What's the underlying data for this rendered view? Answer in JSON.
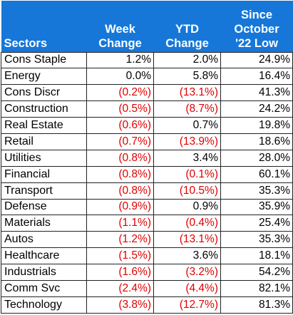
{
  "header": {
    "sectors": "Sectors",
    "week_line1": "Week",
    "week_line2": "Change",
    "ytd_line1": "YTD",
    "ytd_line2": "Change",
    "since_line1": "Since",
    "since_line2": "October",
    "since_line3": "'22 Low"
  },
  "colors": {
    "header_bg": "#1677d8",
    "header_text": "#ffffff",
    "negative": "#e00000",
    "positive": "#000000"
  },
  "rows": [
    {
      "sector": "Cons Staple",
      "week": "1.2%",
      "ytd": "2.0%",
      "since": "24.9%"
    },
    {
      "sector": "Energy",
      "week": "0.0%",
      "ytd": "5.8%",
      "since": "16.4%"
    },
    {
      "sector": "Cons Discr",
      "week": "(0.2%)",
      "ytd": "(13.1%)",
      "since": "41.3%"
    },
    {
      "sector": "Construction",
      "week": "(0.5%)",
      "ytd": "(8.7%)",
      "since": "24.2%"
    },
    {
      "sector": "Real Estate",
      "week": "(0.6%)",
      "ytd": "0.7%",
      "since": "19.8%"
    },
    {
      "sector": "Retail",
      "week": "(0.7%)",
      "ytd": "(13.9%)",
      "since": "18.6%"
    },
    {
      "sector": "Utilities",
      "week": "(0.8%)",
      "ytd": "3.4%",
      "since": "28.0%"
    },
    {
      "sector": "Financial",
      "week": "(0.8%)",
      "ytd": "(0.1%)",
      "since": "60.1%"
    },
    {
      "sector": "Transport",
      "week": "(0.8%)",
      "ytd": "(10.5%)",
      "since": "35.3%"
    },
    {
      "sector": "Defense",
      "week": "(0.9%)",
      "ytd": "0.9%",
      "since": "35.9%"
    },
    {
      "sector": "Materials",
      "week": "(1.1%)",
      "ytd": "(0.4%)",
      "since": "25.4%"
    },
    {
      "sector": "Autos",
      "week": "(1.2%)",
      "ytd": "(13.1%)",
      "since": "35.3%"
    },
    {
      "sector": "Healthcare",
      "week": "(1.5%)",
      "ytd": "3.6%",
      "since": "18.1%"
    },
    {
      "sector": "Industrials",
      "week": "(1.6%)",
      "ytd": "(3.2%)",
      "since": "54.2%"
    },
    {
      "sector": "Comm Svc",
      "week": "(2.4%)",
      "ytd": "(4.4%)",
      "since": "82.1%"
    },
    {
      "sector": "Technology",
      "week": "(3.8%)",
      "ytd": "(12.7%)",
      "since": "81.3%"
    }
  ]
}
